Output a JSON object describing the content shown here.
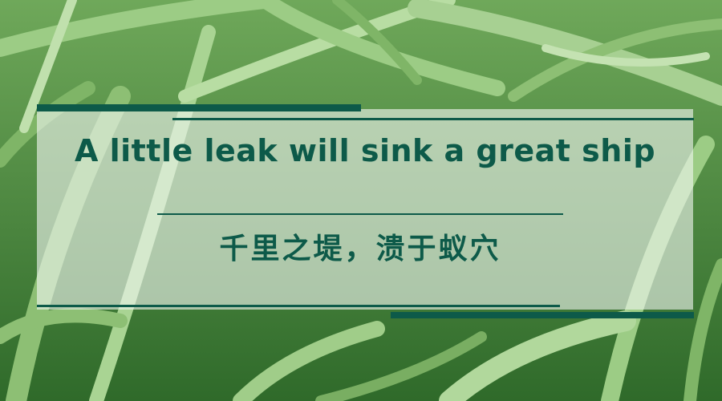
{
  "proverb": {
    "english": "A little leak will sink a great ship",
    "chinese": "千里之堤，溃于蚁穴"
  },
  "colors": {
    "accent": "#0d5a49",
    "grass": "#4f8a3c",
    "panel": "#f0f6f0"
  }
}
